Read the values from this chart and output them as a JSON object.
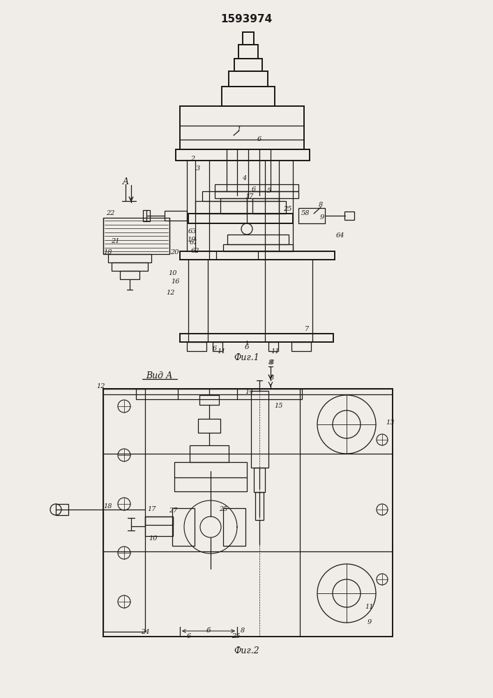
{
  "title": "1593974",
  "fig1_label": "Фиг.1",
  "fig2_label": "Фиг.2",
  "view_label": "Вид А",
  "bg_color": "#f0ede8",
  "line_color": "#1a1a1a",
  "title_fontsize": 11,
  "label_fontsize": 8
}
